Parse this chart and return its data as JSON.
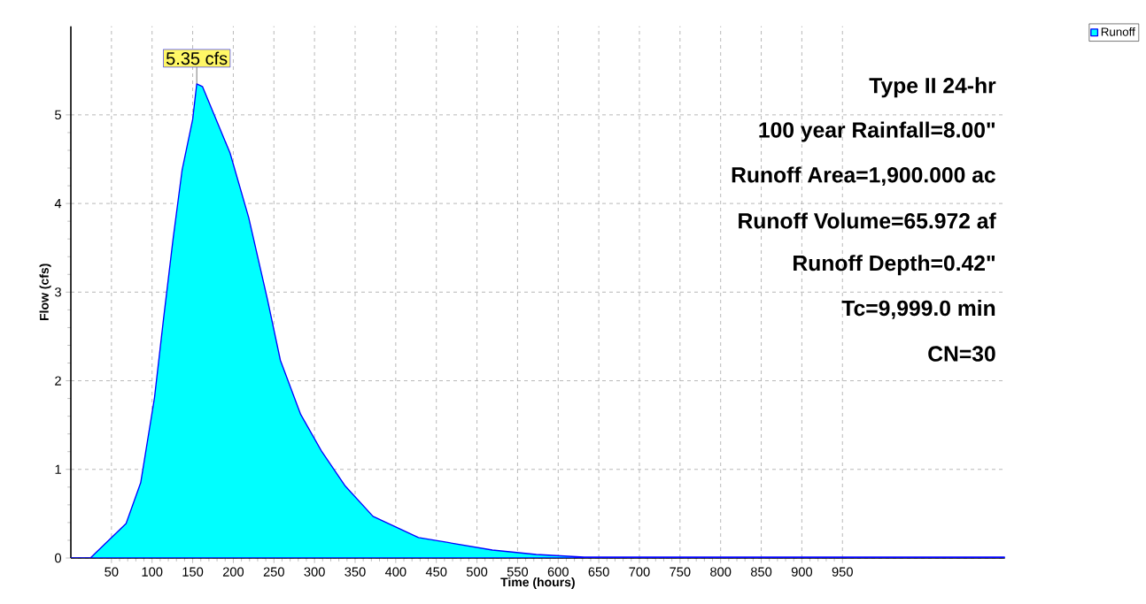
{
  "chart_data": {
    "type": "area",
    "xlabel": "Time  (hours)",
    "ylabel": "Flow  (cfs)",
    "x": [
      0,
      24,
      68,
      86,
      103,
      114,
      126,
      137,
      150,
      155,
      162,
      196,
      219,
      242,
      258,
      283,
      309,
      338,
      372,
      428,
      461,
      519,
      573,
      632,
      1150
    ],
    "series": [
      {
        "name": "Runoff",
        "color": "#00ffff",
        "values": [
          0,
          0,
          0.39,
          0.85,
          1.81,
          2.69,
          3.61,
          4.38,
          4.95,
          5.35,
          5.32,
          4.57,
          3.84,
          2.92,
          2.23,
          1.62,
          1.2,
          0.81,
          0.47,
          0.23,
          0.18,
          0.09,
          0.04,
          0.01,
          0.01
        ]
      }
    ],
    "xlim": [
      0,
      1150
    ],
    "ylim": [
      0,
      6
    ],
    "xticks": [
      50,
      100,
      150,
      200,
      250,
      300,
      350,
      400,
      450,
      500,
      550,
      600,
      650,
      700,
      750,
      800,
      850,
      900,
      950
    ],
    "yticks": [
      0,
      1,
      2,
      3,
      4,
      5
    ],
    "grid": true,
    "legend": "top right",
    "annotations": [
      {
        "text": "5.35 cfs",
        "x": 155,
        "y": 5.35
      },
      "Type II 24-hr",
      "100 year Rainfall=8.00\"",
      "Runoff Area=1,900.000 ac",
      "Runoff Volume=65.972 af",
      "Runoff Depth=0.42\"",
      "Tc=9,999.0 min",
      "CN=30"
    ]
  }
}
